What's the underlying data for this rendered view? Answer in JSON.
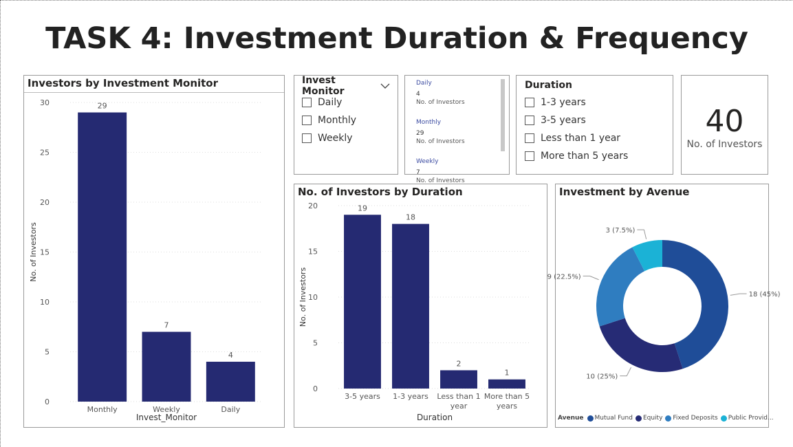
{
  "title": "TASK 4: Investment Duration & Frequency",
  "chart_data": [
    {
      "type": "bar",
      "title": "Investors by Investment Monitor",
      "categories": [
        "Monthly",
        "Weekly",
        "Daily"
      ],
      "values": [
        29,
        7,
        4
      ],
      "color": "#252a72",
      "x_label": "Invest_Monitor",
      "y_label": "No. of Investors",
      "ylim": [
        0,
        30
      ],
      "yticks": [
        0,
        5,
        10,
        15,
        20,
        25,
        30
      ],
      "grid": true
    },
    {
      "type": "bar",
      "title": "No. of Investors by Duration",
      "categories": [
        "3-5 years",
        "1-3 years",
        "Less than 1 year",
        "More than 5 years"
      ],
      "values": [
        19,
        18,
        2,
        1
      ],
      "color": "#252a72",
      "x_label": "Duration",
      "y_label": "No. of Investors",
      "ylim": [
        0,
        20
      ],
      "yticks": [
        0,
        5,
        10,
        15,
        20
      ],
      "grid": true
    },
    {
      "type": "donut",
      "title": "Investment by Avenue",
      "legend_title": "Avenue",
      "categories": [
        "Mutual Fund",
        "Equity",
        "Fixed Deposits",
        "Public Provid..."
      ],
      "values": [
        18,
        10,
        9,
        3
      ],
      "value_labels": [
        "18 (45%)",
        "10 (25%)",
        "9 (22.5%)",
        "3 (7.5%)"
      ],
      "colors": [
        "#1f4d98",
        "#262b75",
        "#2f7dc0",
        "#1bb2d6"
      ]
    }
  ],
  "invest_monitor_slicer": {
    "title": "Invest Monitor",
    "options": [
      "Daily",
      "Monthly",
      "Weekly"
    ]
  },
  "multi_row_card": {
    "rows": [
      {
        "category": "Daily",
        "value": 4,
        "label": "No. of Investors"
      },
      {
        "category": "Monthly",
        "value": 29,
        "label": "No. of Investors"
      },
      {
        "category": "Weekly",
        "value": 7,
        "label": "No. of Investors"
      }
    ]
  },
  "duration_slicer": {
    "title": "Duration",
    "options": [
      "1-3 years",
      "3-5 years",
      "Less than 1 year",
      "More than 5 years"
    ]
  },
  "card": {
    "value": 40,
    "label": "No. of Investors"
  }
}
